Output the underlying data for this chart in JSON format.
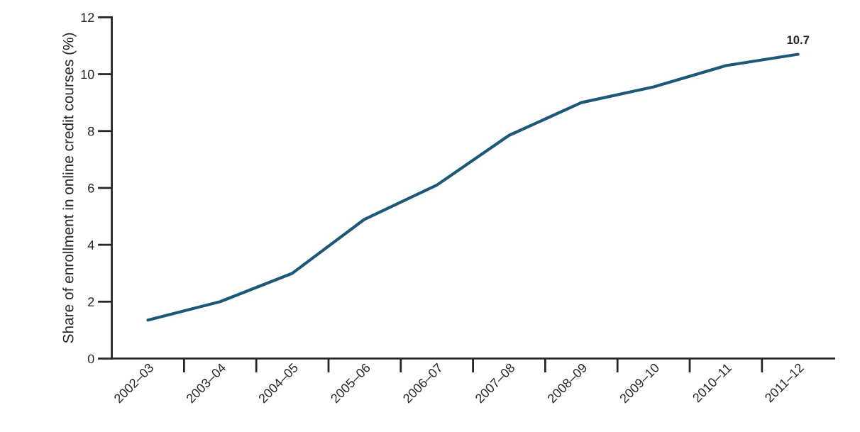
{
  "chart_data": {
    "type": "line",
    "ylabel": "Share of enrollment in online credit courses (%)",
    "categories": [
      "2002–03",
      "2003–04",
      "2004–05",
      "2005–06",
      "2006–07",
      "2007–08",
      "2008–09",
      "2009–10",
      "2010–11",
      "2011–12"
    ],
    "series": [
      {
        "color": "#1d5878",
        "values": [
          1.35,
          2.0,
          3.0,
          4.9,
          6.1,
          7.85,
          9.0,
          9.55,
          10.3,
          10.7
        ],
        "value_labels": [
          null,
          null,
          null,
          null,
          null,
          null,
          null,
          null,
          null,
          "10.7"
        ]
      }
    ],
    "ylim": [
      0,
      12
    ],
    "yticks": [
      0,
      2,
      4,
      6,
      8,
      10,
      12
    ],
    "grid": false
  }
}
